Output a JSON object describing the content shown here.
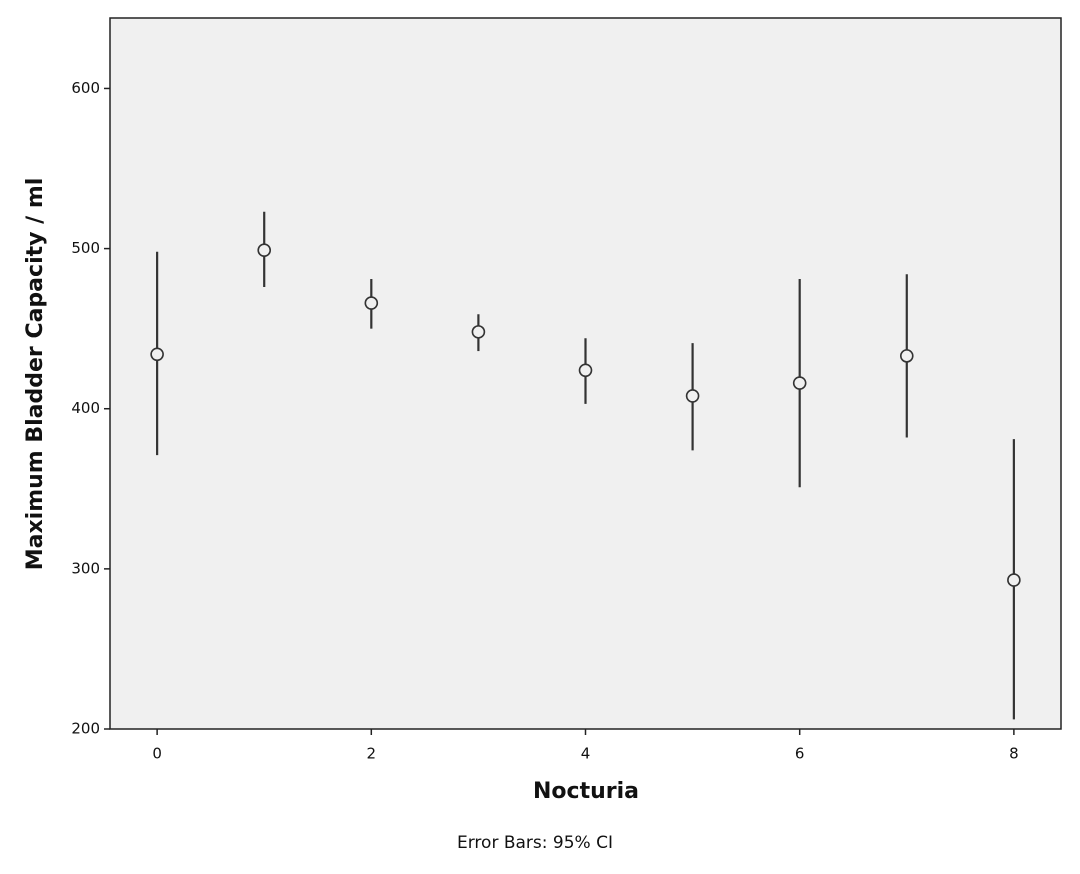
{
  "chart_data": {
    "type": "errorbar",
    "x_label": "Nocturia",
    "y_label": "Maximum Bladder Capacity / ml",
    "annotation": "Error Bars: 95% CI",
    "x": [
      0,
      1,
      2,
      3,
      4,
      5,
      6,
      7,
      8
    ],
    "series": [
      {
        "color": "#333333",
        "values": [
          434,
          499,
          466,
          448,
          424,
          408,
          416,
          433,
          293
        ],
        "lower": [
          371,
          476,
          450,
          436,
          403,
          374,
          351,
          382,
          206
        ],
        "upper": [
          498,
          523,
          481,
          459,
          444,
          441,
          481,
          484,
          381
        ]
      }
    ],
    "xlim": [
      -0.44,
      8.44
    ],
    "xticks": [
      0,
      2,
      4,
      6,
      8
    ],
    "ylim": [
      200,
      644
    ],
    "yticks": [
      200,
      300,
      400,
      500,
      600
    ],
    "plot_background": "#f0f0f0"
  }
}
